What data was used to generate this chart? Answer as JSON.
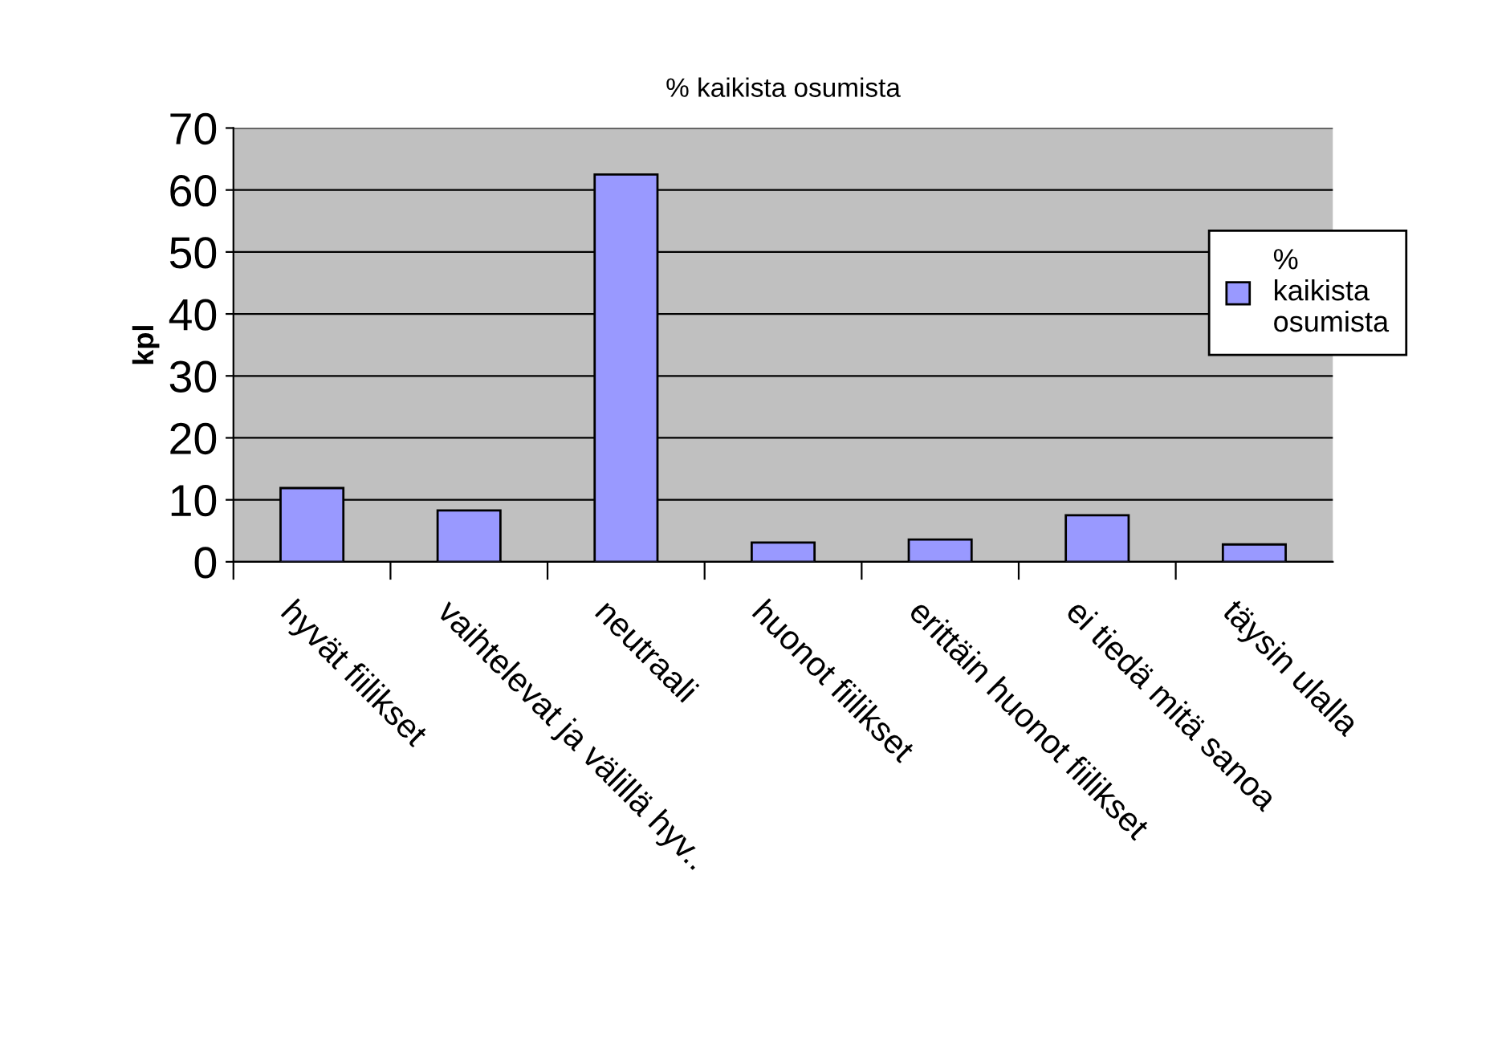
{
  "chart_data": {
    "type": "bar",
    "title": "% kaikista osumista",
    "ylabel": "kpl",
    "categories": [
      "hyvät fiilikset",
      "vaihtelevat ja välillä hyv..",
      "neutraali",
      "huonot fiilikset",
      "erittäin huonot fiilikset",
      "ei tiedä mitä sanoa",
      "täysin ulalla"
    ],
    "series": [
      {
        "name": "% kaikista osumista",
        "color": "#9999ff",
        "values": [
          11.9,
          8.3,
          62.5,
          3.1,
          3.6,
          7.5,
          2.8
        ]
      }
    ],
    "ylim": [
      0,
      70
    ],
    "yticks": [
      0,
      10,
      20,
      30,
      40,
      50,
      60,
      70
    ],
    "grid": "y",
    "legend": "right"
  }
}
